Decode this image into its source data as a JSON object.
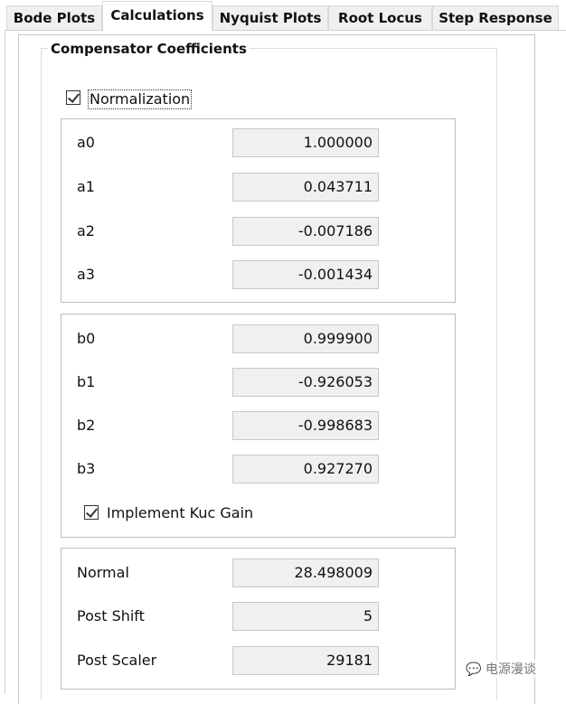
{
  "tabs": [
    {
      "label": "Bode Plots",
      "selected": false
    },
    {
      "label": "Calculations",
      "selected": true
    },
    {
      "label": "Nyquist Plots",
      "selected": false
    },
    {
      "label": "Root Locus",
      "selected": false
    },
    {
      "label": "Step Response",
      "selected": false
    }
  ],
  "group_title": "Compensator Coefficients",
  "normalization": {
    "label": "Normalization",
    "checked": true
  },
  "a_coeffs": [
    {
      "label": "a0",
      "value": "1.000000"
    },
    {
      "label": "a1",
      "value": "0.043711"
    },
    {
      "label": "a2",
      "value": "-0.007186"
    },
    {
      "label": "a3",
      "value": "-0.001434"
    }
  ],
  "b_coeffs": [
    {
      "label": "b0",
      "value": "0.999900"
    },
    {
      "label": "b1",
      "value": "-0.926053"
    },
    {
      "label": "b2",
      "value": "-0.998683"
    },
    {
      "label": "b3",
      "value": "0.927270"
    }
  ],
  "kuc_gain": {
    "label": "Implement Kuc Gain",
    "checked": true
  },
  "scaling": [
    {
      "label": "Normal",
      "value": "28.498009"
    },
    {
      "label": "Post Shift",
      "value": "5"
    },
    {
      "label": "Post Scaler",
      "value": "29181"
    }
  ],
  "watermark": "电源漫谈"
}
